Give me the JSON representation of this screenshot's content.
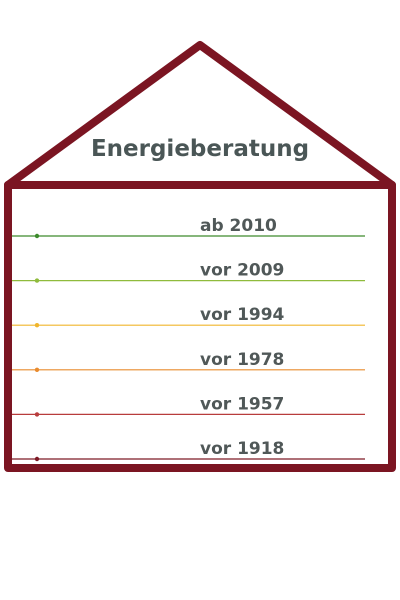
{
  "title": "Energieberatung",
  "levels": [
    {
      "label": "ab 2010",
      "color": "#3d8b2c"
    },
    {
      "label": "vor 2009",
      "color": "#8fbb3c"
    },
    {
      "label": "vor 1994",
      "color": "#f0b52c"
    },
    {
      "label": "vor 1978",
      "color": "#e98b2e"
    },
    {
      "label": "vor 1957",
      "color": "#b83c3c"
    },
    {
      "label": "vor 1918",
      "color": "#7d1a26"
    }
  ]
}
